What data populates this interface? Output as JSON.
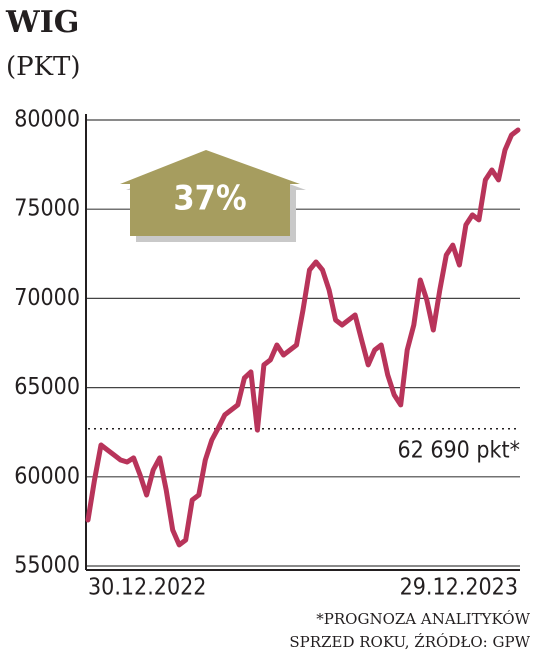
{
  "chart_data": {
    "type": "line",
    "title": "WIG",
    "subtitle": "(PKT)",
    "categories": [
      "30.12.2022",
      null,
      null,
      null,
      null,
      null,
      null,
      null,
      null,
      null,
      null,
      null,
      null,
      null,
      null,
      null,
      null,
      null,
      null,
      null,
      null,
      null,
      null,
      null,
      null,
      null,
      null,
      null,
      null,
      null,
      null,
      null,
      null,
      null,
      null,
      null,
      null,
      null,
      null,
      null,
      null,
      null,
      null,
      null,
      null,
      null,
      null,
      null,
      null,
      null,
      null,
      null,
      null,
      null,
      null,
      null,
      null,
      null,
      null,
      null,
      null,
      null,
      null,
      null,
      null,
      null,
      "29.12.2023"
    ],
    "values": [
      57580,
      59820,
      61780,
      61500,
      61220,
      60940,
      60830,
      61060,
      60100,
      58980,
      60380,
      61060,
      59260,
      57020,
      56180,
      56460,
      58700,
      58980,
      60940,
      62060,
      62740,
      63470,
      63750,
      64030,
      65540,
      65880,
      62620,
      66270,
      66550,
      67390,
      66830,
      67110,
      67390,
      69350,
      71590,
      72040,
      71590,
      70470,
      68790,
      68510,
      68790,
      69070,
      67670,
      66270,
      67110,
      67390,
      65710,
      64590,
      64030,
      67110,
      68510,
      71030,
      69910,
      68230,
      70470,
      72430,
      72990,
      71870,
      74120,
      74680,
      74400,
      76640,
      77200,
      76640,
      78320,
      79160,
      79440
    ],
    "color": "#b8345a",
    "ylim": [
      55000,
      80000
    ],
    "yticks": [
      55000,
      60000,
      65000,
      70000,
      75000,
      80000
    ],
    "grid": true,
    "reference_line": {
      "value": 62690,
      "label": "62 690 pkt*"
    },
    "annotation": "37%",
    "footnote": [
      "*PROGNOZA ANALITYKÓW",
      "SPRZED ROKU, ŹRÓDŁO: GPW"
    ]
  }
}
